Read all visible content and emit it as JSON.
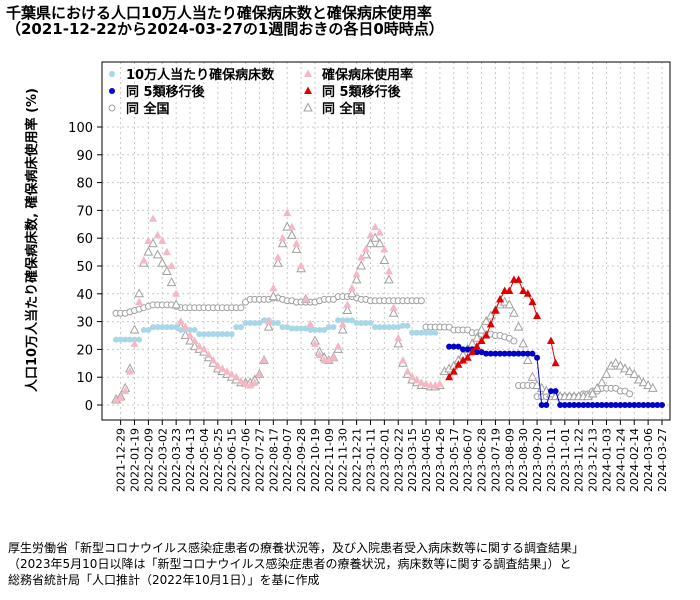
{
  "chart_data": {
    "type": "scatter",
    "title": "千葉県における人口10万人当たり確保病床数と確保病床使用率",
    "subtitle": "（2021-12-22から2024-03-27の1週間おきの各日0時時点）",
    "ylabel": "人口10万人当たり確保病床数,  確保病床使用率  (%)",
    "ylim": [
      0,
      100
    ],
    "yticks": [
      0,
      10,
      20,
      30,
      40,
      50,
      60,
      70,
      80,
      90,
      100
    ],
    "grid": true,
    "legend_position": "top-left",
    "x_start": "2021-12-22",
    "x_end": "2024-03-27",
    "x_interval_days": 7,
    "xtick_labels": [
      "2021-12-29",
      "2022-02-09",
      "2022-03-23",
      "2022-05-04",
      "2022-06-15",
      "2022-07-27",
      "2022-09-07",
      "2022-10-19",
      "2022-11-30",
      "2023-01-11",
      "2023-02-22",
      "2023-04-05",
      "2023-05-17",
      "2023-06-28",
      "2023-08-09",
      "2023-09-20",
      "2023-11-01",
      "2023-12-13",
      "2024-01-24",
      "2024-03-06",
      "2022-01-19",
      "2022-03-02",
      "2022-04-13",
      "2022-05-25",
      "2022-07-06",
      "2022-08-17",
      "2022-09-28",
      "2022-11-09",
      "2022-12-21",
      "2023-02-01",
      "2023-03-15",
      "2023-04-26",
      "2023-06-07",
      "2023-07-19",
      "2023-08-30",
      "2023-10-11",
      "2023-11-22",
      "2024-01-03",
      "2024-02-14",
      "2024-03-27"
    ],
    "series": [
      {
        "name": "10万人当たり確保病床数",
        "color": "#a8d8e8",
        "marker": "circle",
        "values": [
          23.5,
          23.5,
          23.5,
          23.5,
          23.5,
          23.5,
          27,
          27,
          28,
          28,
          28,
          28,
          28,
          28,
          27,
          27,
          27,
          27,
          25.5,
          25.5,
          25.5,
          25.5,
          25.5,
          25.5,
          25.5,
          25.5,
          28,
          28,
          29.5,
          29.5,
          29.5,
          29.5,
          30.5,
          30.5,
          29.5,
          29.5,
          28,
          28,
          27.5,
          27.5,
          27.5,
          27.5,
          27,
          27,
          27,
          27,
          28,
          28,
          30.5,
          30.5,
          30.5,
          30.5,
          29.5,
          29.5,
          29.5,
          29.5,
          28,
          28,
          28,
          28,
          28,
          28,
          28.5,
          28.5,
          26,
          26,
          26,
          26,
          26,
          26
        ]
      },
      {
        "name": "確保病床使用率",
        "color": "#f4b8c4",
        "marker": "triangle",
        "values": [
          1.5,
          2.5,
          5,
          12,
          22,
          37,
          52,
          59,
          67,
          61,
          59,
          55,
          50,
          40,
          30,
          28,
          25,
          23,
          21,
          20,
          18,
          16,
          14,
          13,
          12,
          11,
          10,
          8.5,
          7.5,
          7,
          8,
          11,
          16,
          30,
          42,
          53,
          60,
          69,
          64,
          58,
          50,
          38,
          29,
          22,
          18,
          16,
          16,
          17,
          21,
          29,
          36,
          42,
          47,
          53,
          56,
          61,
          64,
          62,
          56,
          48,
          35,
          24,
          16,
          12,
          10,
          9,
          8,
          7.5,
          7,
          7,
          7.5
        ]
      },
      {
        "name": "同 5類移行後",
        "color": "#0000cc",
        "marker": "circle",
        "values": [
          21,
          21,
          21,
          20,
          20,
          20,
          19,
          19,
          18.5,
          18.5,
          18.5,
          18.5,
          18.5,
          18.5,
          18.5,
          18.5,
          18.5,
          18.5,
          18.5,
          17,
          0,
          0,
          5,
          5,
          0,
          0,
          0,
          0,
          0,
          0,
          0,
          0,
          0,
          0,
          0,
          0,
          0,
          0,
          0,
          0,
          0,
          0,
          0,
          0,
          0,
          0,
          0
        ]
      },
      {
        "name": "同 5類移行後",
        "color": "#e00000",
        "marker": "triangle",
        "values": [
          10,
          12,
          14.5,
          16,
          17,
          19,
          21,
          23,
          25,
          29,
          34,
          38,
          41,
          41,
          45,
          45,
          41,
          40,
          37,
          32,
          null,
          null,
          23,
          15
        ]
      },
      {
        "name": "同 全国",
        "color": "#a0a0a0",
        "marker": "circle",
        "values": [
          33,
          33,
          33,
          33.5,
          34,
          34.5,
          35,
          35.5,
          36,
          36,
          36,
          36,
          36,
          35.5,
          35,
          35,
          35,
          35,
          35,
          35,
          35,
          35,
          35,
          35,
          35,
          35,
          35,
          35,
          37,
          38,
          38,
          38,
          38,
          38,
          38.5,
          38.5,
          38,
          37.5,
          37.5,
          37,
          37,
          37,
          37,
          37,
          37.5,
          38,
          38,
          38,
          39,
          39,
          39,
          39,
          38.5,
          38,
          38,
          37.5,
          37.5,
          37.5,
          37.5,
          37.5,
          37.5,
          37.5,
          37.5,
          37.5,
          37.5,
          37.5,
          37.5,
          28,
          28,
          28,
          28,
          28,
          28,
          27,
          27,
          27,
          27,
          26,
          26,
          25.5,
          25.5,
          25.5,
          25,
          25,
          24.5,
          24,
          23,
          7,
          7,
          7,
          7,
          3,
          3,
          3,
          3,
          3,
          3,
          3,
          3,
          3,
          3,
          4,
          4,
          5,
          5,
          6,
          6,
          6,
          6,
          5,
          5,
          4
        ]
      },
      {
        "name": "同 全国",
        "color": "#a0a0a0",
        "marker": "triangle",
        "values": [
          2,
          3,
          6,
          13,
          27,
          40,
          51,
          55,
          58,
          54,
          51,
          48,
          44,
          36,
          28,
          25,
          23,
          21,
          20,
          19,
          17,
          15,
          13,
          12,
          11,
          10,
          9,
          8,
          8,
          8,
          9,
          11,
          16,
          28,
          39,
          51,
          58,
          64,
          61,
          56,
          49,
          38,
          28,
          23,
          19,
          17,
          16,
          17,
          20,
          27,
          34,
          40,
          45,
          50,
          54,
          58,
          60,
          58,
          52,
          45,
          33,
          22,
          15,
          11,
          9,
          8,
          7,
          7,
          6.5,
          6.5,
          7,
          12,
          13,
          14,
          16,
          18,
          20,
          22,
          24,
          27,
          30,
          32,
          34,
          36,
          37,
          36,
          33,
          28,
          22,
          16,
          10,
          7,
          6,
          5,
          4,
          3,
          3,
          3,
          3,
          3,
          3,
          3,
          3,
          4,
          6,
          8,
          11,
          14,
          15,
          14,
          13,
          12,
          11,
          9,
          8,
          7,
          6
        ]
      }
    ]
  },
  "legend": [
    {
      "label": "10万人当たり確保病床数",
      "color": "#a8d8e8",
      "marker": "circle"
    },
    {
      "label": "確保病床使用率",
      "color": "#f4b8c4",
      "marker": "triangle"
    },
    {
      "label": "同 5類移行後",
      "color": "#0000cc",
      "marker": "circle"
    },
    {
      "label": "同 5類移行後",
      "color": "#e00000",
      "marker": "triangle"
    },
    {
      "label": "同 全国",
      "color": "#a0a0a0",
      "marker": "circle-open"
    },
    {
      "label": "同 全国",
      "color": "#a0a0a0",
      "marker": "triangle-open"
    }
  ],
  "source": {
    "line1": "厚生労働省「新型コロナウイルス感染症患者の療養状況等，及び入院患者受入病床数等に関する調査結果」",
    "line2": "（2023年5月10日以降は「新型コロナウイルス感染症患者の療養状況，病床数等に関する調査結果」）と",
    "line3": "総務省統計局「人口推計（2022年10月1日）」を基に作成"
  }
}
